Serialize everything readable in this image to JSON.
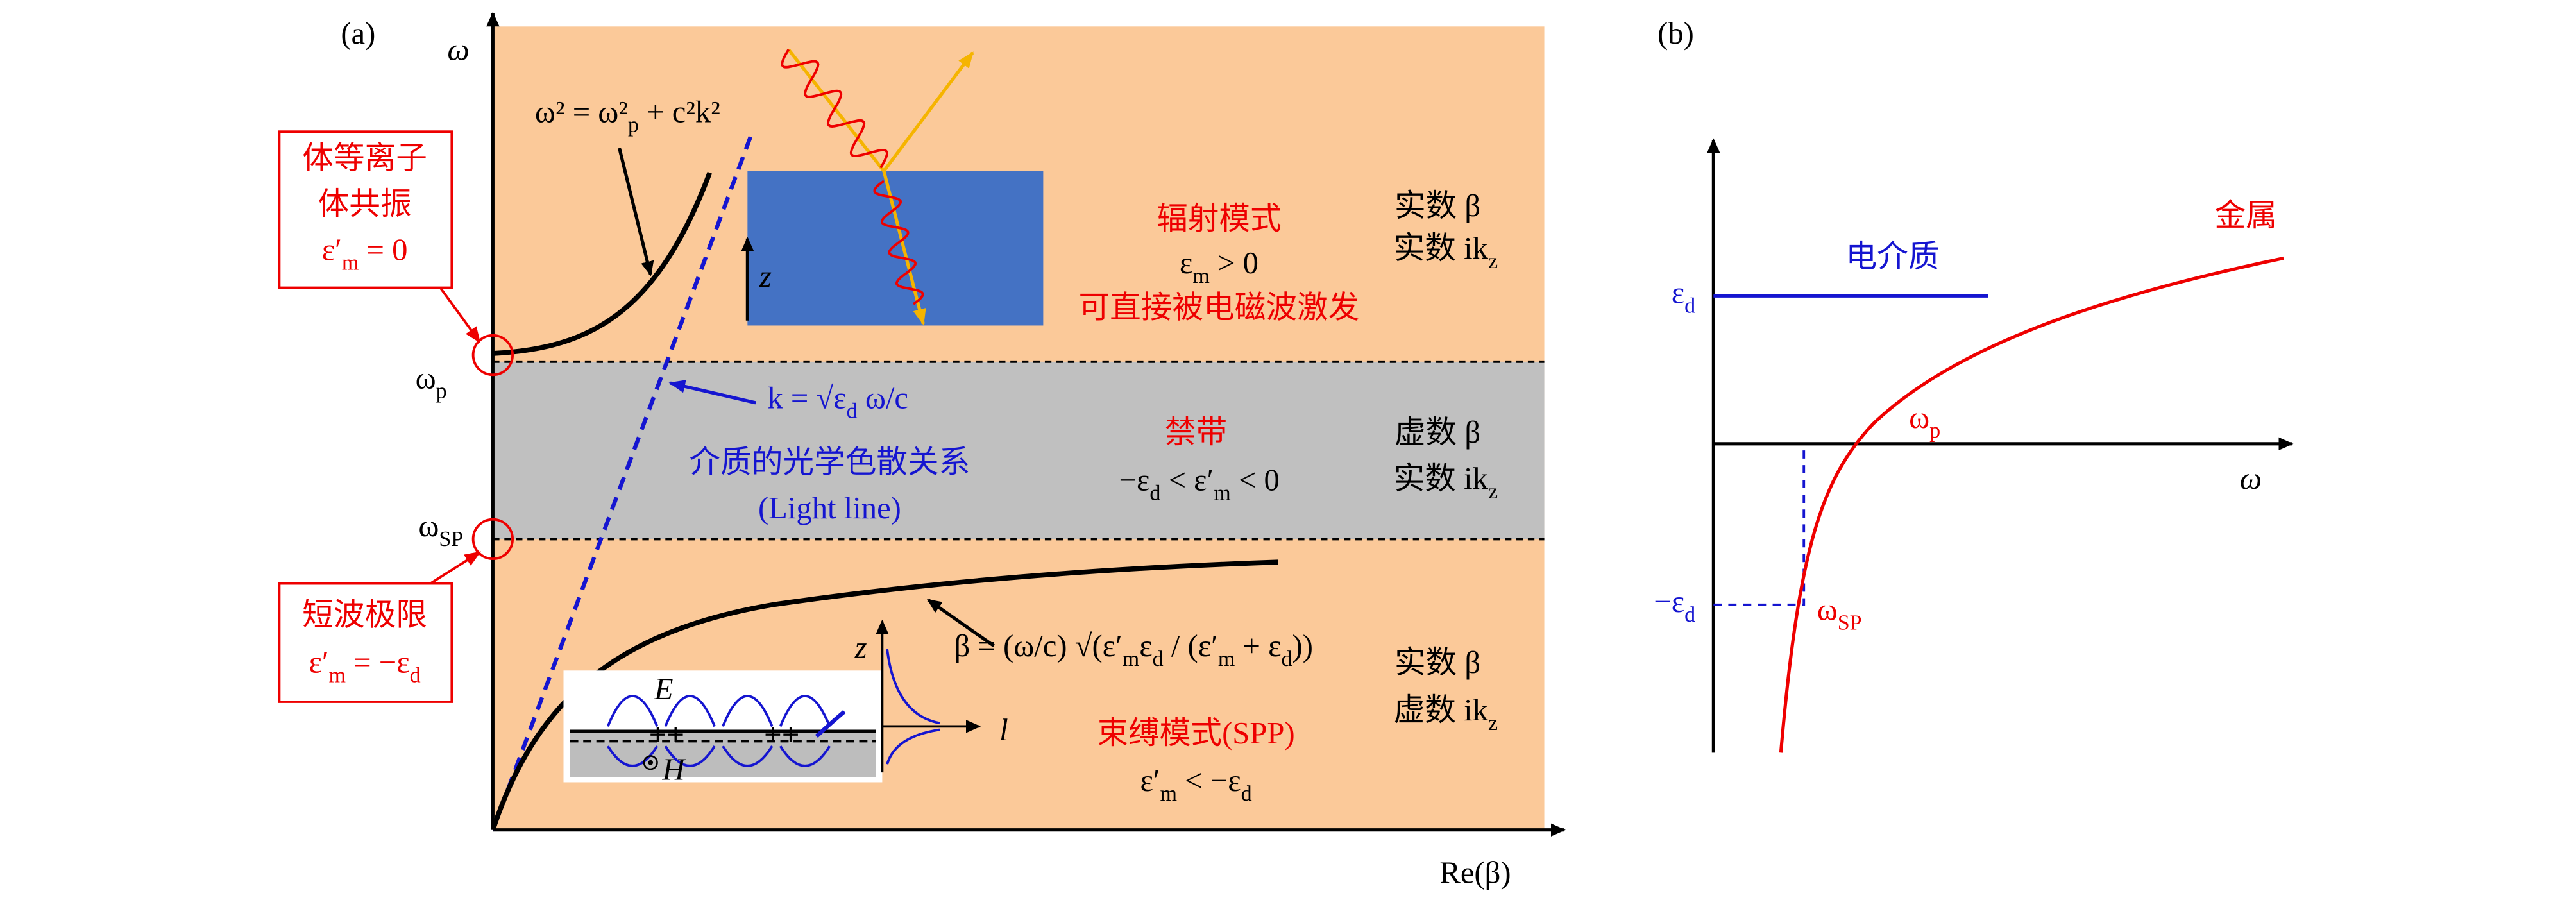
{
  "panel_a": {
    "label": "(a)",
    "y_axis_label": "ω",
    "x_axis_label": "Re(β)",
    "omega_p": [
      "ω",
      "p"
    ],
    "omega_sp": [
      "ω",
      "SP"
    ],
    "bulk_plasmon_box": {
      "lines": [
        "体等离子",
        "体共振"
      ],
      "condition": [
        "ε′",
        "m",
        " = 0"
      ]
    },
    "short_wave_box": {
      "lines": [
        "短波极限"
      ],
      "condition": [
        "ε′",
        "m",
        " = −ε",
        "d"
      ]
    },
    "dispersion_equation": [
      "ω² = ω²",
      "p",
      " + c²k²"
    ],
    "light_line_equation": [
      "k = √ε",
      "d",
      " ω/c"
    ],
    "light_line_caption": [
      "介质的光学色散关系",
      "(Light line)"
    ],
    "spp_equation": [
      "β = (ω/c) √(ε′",
      "m",
      "ε",
      "d",
      " / (ε′",
      "m",
      " + ε",
      "d",
      "))"
    ],
    "radiation_region": {
      "title": "辐射模式",
      "condition": [
        "ε",
        "m",
        " > 0"
      ],
      "note": "可直接被电磁波激发",
      "beta": "实数 β",
      "kz": [
        "实数 ik",
        "z"
      ]
    },
    "band_gap_region": {
      "title": "禁带",
      "condition": [
        "−ε",
        "d",
        " < ε′",
        "m",
        " < 0"
      ],
      "beta": "虚数 β",
      "kz": [
        "实数 ik",
        "z"
      ]
    },
    "bound_region": {
      "title": "束缚模式(SPP)",
      "condition": [
        "ε′",
        "m",
        " < −ε",
        "d"
      ],
      "beta": "实数 β",
      "kz": [
        "虚数 ik",
        "z"
      ]
    },
    "inset_labels": {
      "field_e": "E",
      "field_h": "H",
      "axis_z": "z",
      "axis_l": "l"
    },
    "slab_axis_label": "z"
  },
  "panel_b": {
    "label": "(b)",
    "x_axis_label": "ω",
    "epsilon_d": [
      "ε",
      "d"
    ],
    "minus_epsilon_d": [
      "−ε",
      "d"
    ],
    "dielectric_label": "电介质",
    "metal_label": "金属",
    "omega_p": [
      "ω",
      "p"
    ],
    "omega_sp": [
      "ω",
      "SP"
    ]
  }
}
